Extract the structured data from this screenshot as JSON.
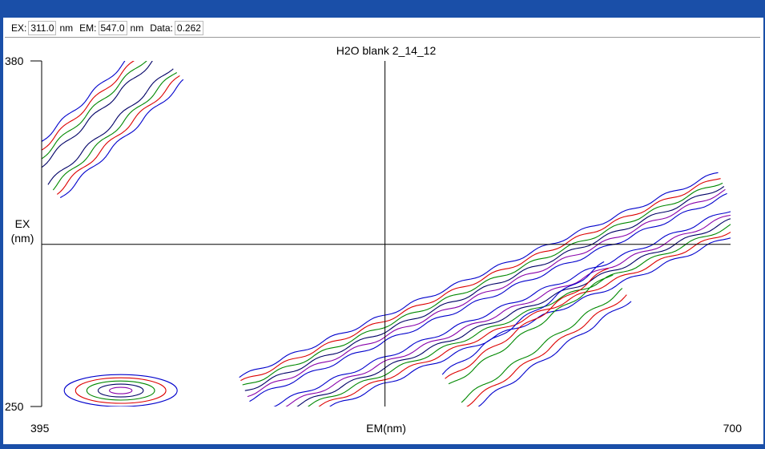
{
  "readout": {
    "ex_label": "EX:",
    "ex_value": "311.0",
    "ex_unit": "nm",
    "em_label": "EM:",
    "em_value": "547.0",
    "em_unit": "nm",
    "data_label": "Data:",
    "data_value": "0.262"
  },
  "colors": {
    "frame": "#1a4fa8",
    "contours": [
      "#0000cc",
      "#dd0000",
      "#008800",
      "#000066",
      "#8800aa"
    ]
  },
  "chart_data": {
    "type": "contour",
    "title": "H2O blank 2_14_12",
    "xlabel": "EM(nm)",
    "ylabel": "EX\n(nm)",
    "xlim": [
      395,
      700
    ],
    "ylim": [
      250,
      380
    ],
    "x_ticks": [
      "395",
      "700"
    ],
    "y_ticks": [
      "380",
      "250"
    ],
    "crosshair": {
      "em": 547.0,
      "ex": 311.0,
      "value": 0.262
    },
    "grid": false,
    "features": [
      {
        "name": "rayleigh-scatter-upper",
        "from": [
          395,
          336
        ],
        "to": [
          450,
          380
        ],
        "width_nm": 12,
        "levels": 4
      },
      {
        "name": "raman-scatter-main",
        "from": [
          488,
          250
        ],
        "to": [
          700,
          327
        ],
        "width_nm": 14,
        "levels": 6
      },
      {
        "name": "raman-scatter-secondary",
        "from": [
          578,
          255
        ],
        "to": [
          650,
          297
        ],
        "width_nm": 10,
        "levels": 3
      },
      {
        "name": "low-region-peak",
        "center": [
          430,
          256
        ],
        "radius_em": 25,
        "radius_ex": 6,
        "levels": 5
      }
    ]
  }
}
